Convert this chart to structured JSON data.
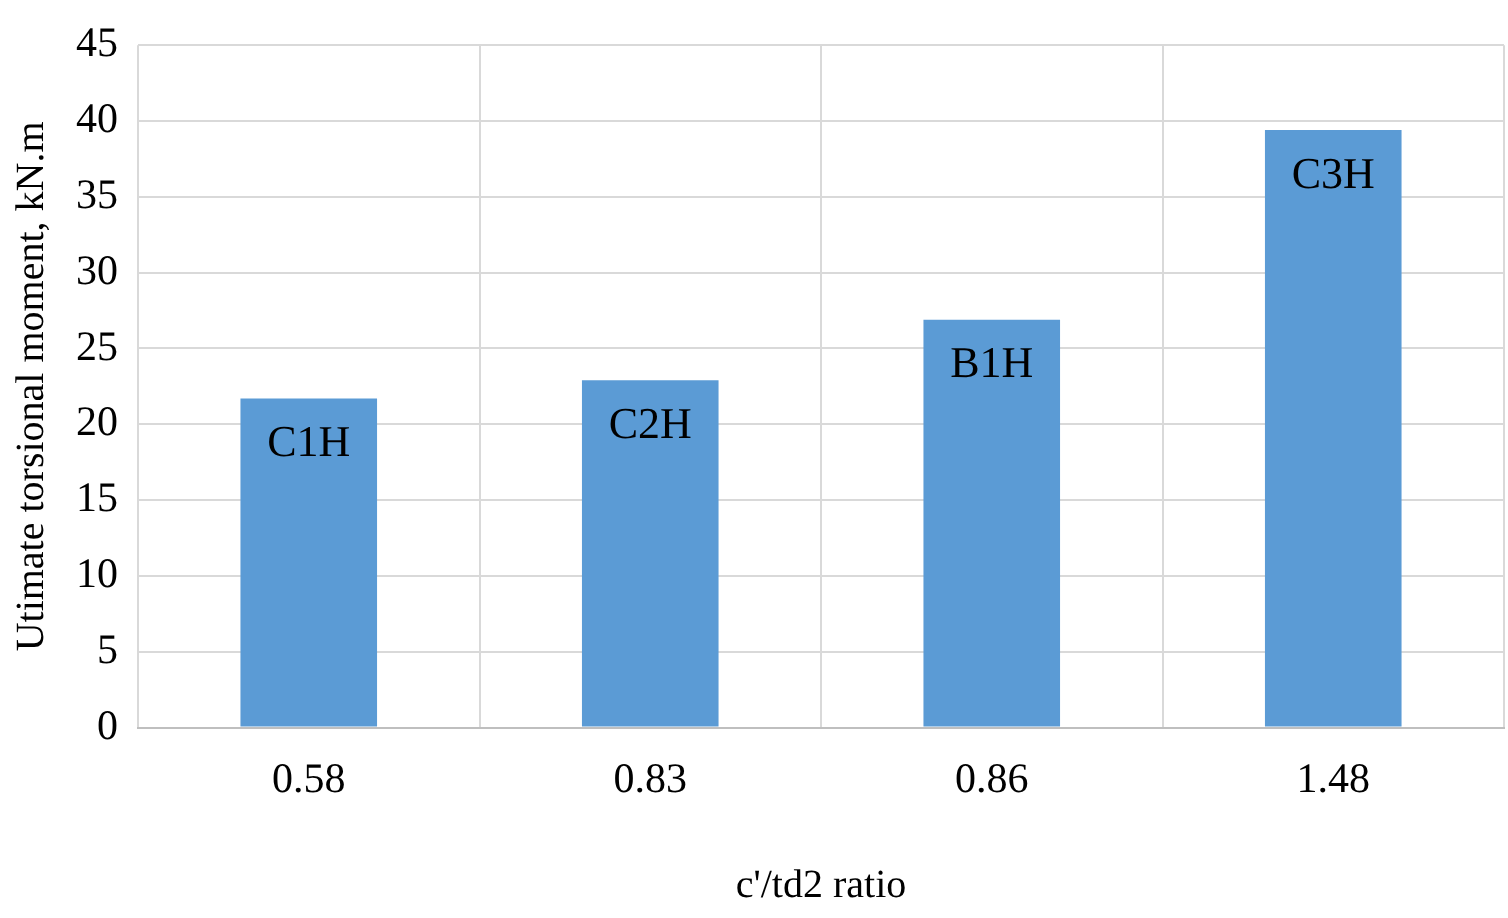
{
  "chart_data": {
    "type": "bar",
    "xlabel": "c'/td2 ratio",
    "ylabel": "Utimate torsional moment, kN.m",
    "categories": [
      "0.58",
      "0.83",
      "0.86",
      "1.48"
    ],
    "values": [
      21.7,
      22.9,
      26.9,
      39.4
    ],
    "color": "#5b9bd5",
    "ylim": [
      0,
      45
    ],
    "yticks": [
      0,
      5,
      10,
      15,
      20,
      25,
      30,
      35,
      40,
      45
    ],
    "grid": true,
    "annotations": [
      {
        "text": "C1H",
        "x": "0.58",
        "y": 21.7
      },
      {
        "text": "C2H",
        "x": "0.83",
        "y": 22.9
      },
      {
        "text": "B1H",
        "x": "0.86",
        "y": 26.9
      },
      {
        "text": "C3H",
        "x": "1.48",
        "y": 39.4
      }
    ]
  }
}
